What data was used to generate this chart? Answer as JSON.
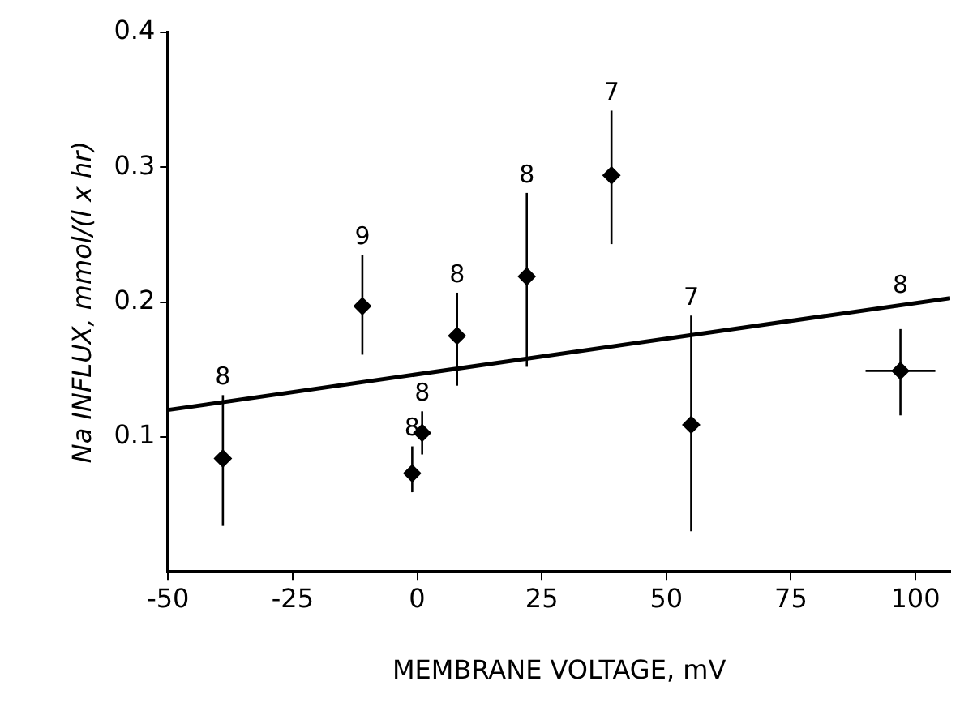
{
  "chart_data": {
    "type": "scatter",
    "xlabel": "MEMBRANE VOLTAGE, mV",
    "ylabel": "Na INFLUX, mmol/(l x hr)",
    "xlim": [
      -50,
      107
    ],
    "xticks": [
      -50,
      -25,
      0,
      25,
      50,
      75,
      100
    ],
    "ylim": [
      0,
      0.4
    ],
    "yticks": [
      0.1,
      0.2,
      0.3,
      0.4
    ],
    "grid": false,
    "legend": false,
    "marker": "diamond",
    "series": [
      {
        "color": "#000000",
        "x": [
          -39,
          -11,
          -1,
          1,
          8,
          22,
          39,
          55,
          97
        ],
        "values": [
          0.084,
          0.197,
          0.073,
          0.103,
          0.175,
          0.219,
          0.294,
          0.109,
          0.149
        ],
        "errors": [
          [
            0.034,
            0.131
          ],
          [
            0.161,
            0.235
          ],
          [
            0.059,
            0.093
          ],
          [
            0.087,
            0.119
          ],
          [
            0.138,
            0.207
          ],
          [
            0.152,
            0.281
          ],
          [
            0.243,
            0.342
          ],
          [
            0.03,
            0.19
          ],
          [
            0.116,
            0.18
          ]
        ],
        "xerrors": [
          null,
          null,
          null,
          null,
          null,
          null,
          null,
          null,
          [
            90,
            104
          ]
        ]
      },
      {
        "type": "line",
        "color": "#000000",
        "x": [
          -50,
          107
        ],
        "values": [
          0.12,
          0.203
        ],
        "marker": "none"
      }
    ],
    "annotations": [
      {
        "text": "8",
        "x": -39,
        "y": 0.131
      },
      {
        "text": "9",
        "x": -11,
        "y": 0.235
      },
      {
        "text": "8",
        "x": -1,
        "y": 0.093
      },
      {
        "text": "8",
        "x": 1,
        "y": 0.119
      },
      {
        "text": "8",
        "x": 8,
        "y": 0.207
      },
      {
        "text": "8",
        "x": 22,
        "y": 0.281
      },
      {
        "text": "7",
        "x": 39,
        "y": 0.342
      },
      {
        "text": "7",
        "x": 55,
        "y": 0.19
      },
      {
        "text": "8",
        "x": 97,
        "y": 0.18
      }
    ]
  }
}
